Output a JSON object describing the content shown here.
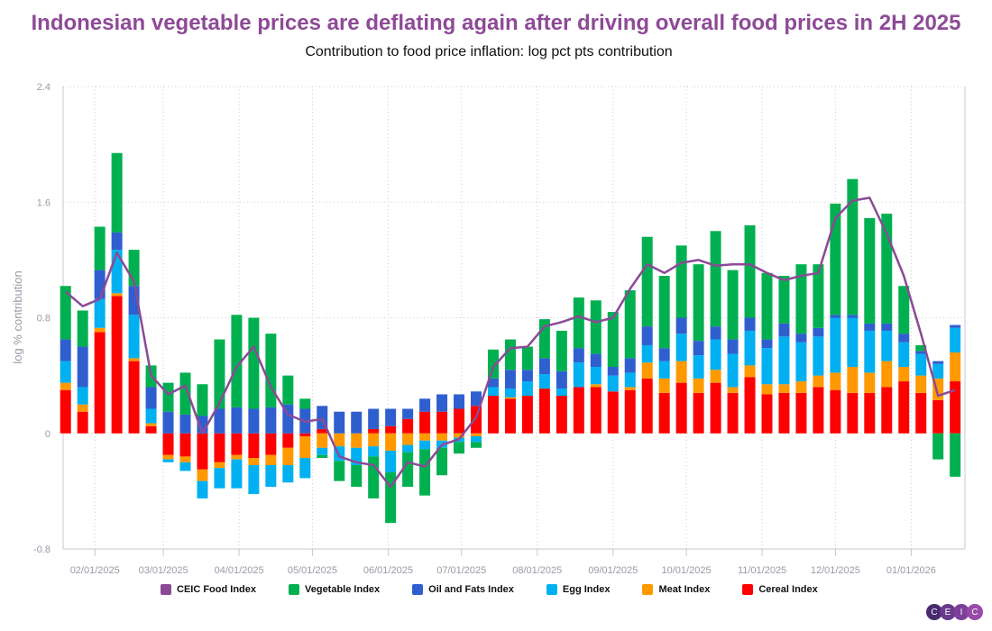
{
  "chart_data": {
    "type": "bar",
    "stacked": true,
    "title": "Indonesian vegetable prices are deflating again after driving overall food prices in 2H 2025",
    "subtitle": "Contribution to food price inflation: log pct pts contribution",
    "ylabel": "log % contribution",
    "xlabel": "",
    "ylim": [
      -0.8,
      2.4
    ],
    "yticks": [
      "-0.8",
      "0",
      "0.8",
      "1.6",
      "2.4"
    ],
    "xlim": [
      "2025-01-19",
      "2026-01-23"
    ],
    "xticks": [
      {
        "date": "2025-02-01",
        "label": "02/01/2025"
      },
      {
        "date": "2025-03-01",
        "label": "03/01/2025"
      },
      {
        "date": "2025-04-01",
        "label": "04/01/2025"
      },
      {
        "date": "2025-05-01",
        "label": "05/01/2025"
      },
      {
        "date": "2025-06-01",
        "label": "06/01/2025"
      },
      {
        "date": "2025-07-01",
        "label": "07/01/2025"
      },
      {
        "date": "2025-08-01",
        "label": "08/01/2025"
      },
      {
        "date": "2025-09-01",
        "label": "09/01/2025"
      },
      {
        "date": "2025-10-01",
        "label": "10/01/2025"
      },
      {
        "date": "2025-11-01",
        "label": "11/01/2025"
      },
      {
        "date": "2025-12-01",
        "label": "12/01/2025"
      },
      {
        "date": "2026-01-01",
        "label": "01/01/2026"
      }
    ],
    "grid": true,
    "legend_position": "bottom",
    "x": [
      "2025-01-20",
      "2025-01-27",
      "2025-02-03",
      "2025-02-10",
      "2025-02-17",
      "2025-02-24",
      "2025-03-03",
      "2025-03-10",
      "2025-03-17",
      "2025-03-24",
      "2025-03-31",
      "2025-04-07",
      "2025-04-14",
      "2025-04-21",
      "2025-04-28",
      "2025-05-05",
      "2025-05-12",
      "2025-05-19",
      "2025-05-26",
      "2025-06-02",
      "2025-06-09",
      "2025-06-16",
      "2025-06-23",
      "2025-06-30",
      "2025-07-07",
      "2025-07-14",
      "2025-07-21",
      "2025-07-28",
      "2025-08-04",
      "2025-08-11",
      "2025-08-18",
      "2025-08-25",
      "2025-09-01",
      "2025-09-08",
      "2025-09-15",
      "2025-09-22",
      "2025-09-29",
      "2025-10-06",
      "2025-10-13",
      "2025-10-20",
      "2025-10-27",
      "2025-11-03",
      "2025-11-10",
      "2025-11-17",
      "2025-11-24",
      "2025-12-01",
      "2025-12-08",
      "2025-12-15",
      "2025-12-22",
      "2025-12-29",
      "2026-01-05",
      "2026-01-12",
      "2026-01-19"
    ],
    "series": [
      {
        "name": "Cereal Index",
        "kind": "bar",
        "color": "#ff0000",
        "values": [
          0.3,
          0.15,
          0.7,
          0.95,
          0.5,
          0.05,
          -0.15,
          -0.16,
          -0.25,
          -0.2,
          -0.15,
          -0.17,
          -0.15,
          -0.1,
          -0.02,
          0.03,
          0.0,
          0.0,
          0.03,
          0.05,
          0.1,
          0.15,
          0.15,
          0.17,
          0.19,
          0.26,
          0.24,
          0.26,
          0.31,
          0.26,
          0.32,
          0.32,
          0.29,
          0.3,
          0.38,
          0.28,
          0.35,
          0.28,
          0.35,
          0.28,
          0.39,
          0.27,
          0.28,
          0.28,
          0.32,
          0.3,
          0.28,
          0.28,
          0.32,
          0.36,
          0.28,
          0.23,
          0.36
        ]
      },
      {
        "name": "Meat Index",
        "kind": "bar",
        "color": "#ff9900",
        "values": [
          0.05,
          0.05,
          0.03,
          0.02,
          0.02,
          0.02,
          -0.03,
          -0.04,
          -0.08,
          -0.04,
          -0.03,
          -0.05,
          -0.07,
          -0.12,
          -0.15,
          -0.1,
          -0.09,
          -0.1,
          -0.09,
          -0.12,
          -0.08,
          -0.05,
          -0.05,
          -0.03,
          -0.02,
          0.0,
          0.01,
          0.0,
          0.0,
          0.0,
          0.0,
          0.02,
          0.0,
          0.02,
          0.11,
          0.1,
          0.15,
          0.1,
          0.09,
          0.04,
          0.08,
          0.07,
          0.06,
          0.08,
          0.08,
          0.12,
          0.18,
          0.14,
          0.18,
          0.1,
          0.12,
          0.15,
          0.2
        ]
      },
      {
        "name": "Egg Index",
        "kind": "bar",
        "color": "#00b0f0",
        "values": [
          0.15,
          0.12,
          0.2,
          0.3,
          0.3,
          0.1,
          -0.02,
          -0.06,
          -0.12,
          -0.14,
          -0.2,
          -0.2,
          -0.15,
          -0.12,
          -0.14,
          -0.05,
          -0.1,
          -0.12,
          -0.07,
          -0.15,
          -0.05,
          -0.06,
          -0.05,
          -0.03,
          -0.04,
          0.06,
          0.06,
          0.1,
          0.1,
          0.05,
          0.17,
          0.12,
          0.11,
          0.1,
          0.12,
          0.12,
          0.19,
          0.16,
          0.21,
          0.23,
          0.24,
          0.25,
          0.33,
          0.27,
          0.27,
          0.38,
          0.34,
          0.29,
          0.21,
          0.17,
          0.15,
          0.1,
          0.17
        ]
      },
      {
        "name": "Oil and Fats Index",
        "kind": "bar",
        "color": "#2f5fcf",
        "values": [
          0.15,
          0.28,
          0.2,
          0.12,
          0.2,
          0.15,
          0.15,
          0.13,
          0.12,
          0.17,
          0.18,
          0.17,
          0.18,
          0.2,
          0.17,
          0.16,
          0.15,
          0.15,
          0.14,
          0.12,
          0.07,
          0.09,
          0.12,
          0.1,
          0.1,
          0.06,
          0.13,
          0.08,
          0.11,
          0.12,
          0.1,
          0.09,
          0.06,
          0.1,
          0.13,
          0.09,
          0.11,
          0.1,
          0.09,
          0.1,
          0.09,
          0.06,
          0.09,
          0.06,
          0.06,
          0.02,
          0.02,
          0.05,
          0.05,
          0.06,
          0.02,
          0.02,
          0.02
        ]
      },
      {
        "name": "Vegetable Index",
        "kind": "bar",
        "color": "#00b050",
        "values": [
          0.37,
          0.25,
          0.3,
          0.55,
          0.25,
          0.15,
          0.2,
          0.29,
          0.22,
          0.48,
          0.64,
          0.63,
          0.51,
          0.2,
          0.07,
          -0.02,
          -0.14,
          -0.15,
          -0.29,
          -0.35,
          -0.24,
          -0.32,
          -0.19,
          -0.08,
          -0.04,
          0.2,
          0.21,
          0.16,
          0.27,
          0.28,
          0.35,
          0.37,
          0.38,
          0.47,
          0.62,
          0.5,
          0.5,
          0.53,
          0.66,
          0.48,
          0.64,
          0.46,
          0.33,
          0.48,
          0.44,
          0.77,
          0.94,
          0.73,
          0.76,
          0.33,
          0.04,
          -0.18,
          -0.3
        ]
      },
      {
        "name": "CEIC Food Index",
        "kind": "line",
        "color": "#8b4a96",
        "values": [
          0.98,
          0.88,
          0.93,
          1.25,
          1.05,
          0.4,
          0.27,
          0.33,
          0.0,
          0.21,
          0.46,
          0.6,
          0.32,
          0.13,
          0.08,
          0.1,
          -0.16,
          -0.2,
          -0.22,
          -0.37,
          -0.2,
          -0.23,
          -0.08,
          -0.04,
          0.11,
          0.46,
          0.59,
          0.6,
          0.74,
          0.77,
          0.81,
          0.77,
          0.8,
          1.0,
          1.17,
          1.11,
          1.18,
          1.2,
          1.16,
          1.17,
          1.17,
          1.11,
          1.06,
          1.09,
          1.11,
          1.49,
          1.61,
          1.63,
          1.38,
          1.09,
          0.69,
          0.26,
          0.3
        ]
      }
    ],
    "legend": [
      "CEIC Food Index",
      "Vegetable Index",
      "Oil and Fats Index",
      "Egg Index",
      "Meat Index",
      "Cereal Index"
    ]
  },
  "logo": {
    "letters": [
      "C",
      "E",
      "I",
      "C"
    ],
    "colors": [
      "#4a2a6e",
      "#6a3a8c",
      "#7d3f98",
      "#9a4aa8"
    ]
  }
}
